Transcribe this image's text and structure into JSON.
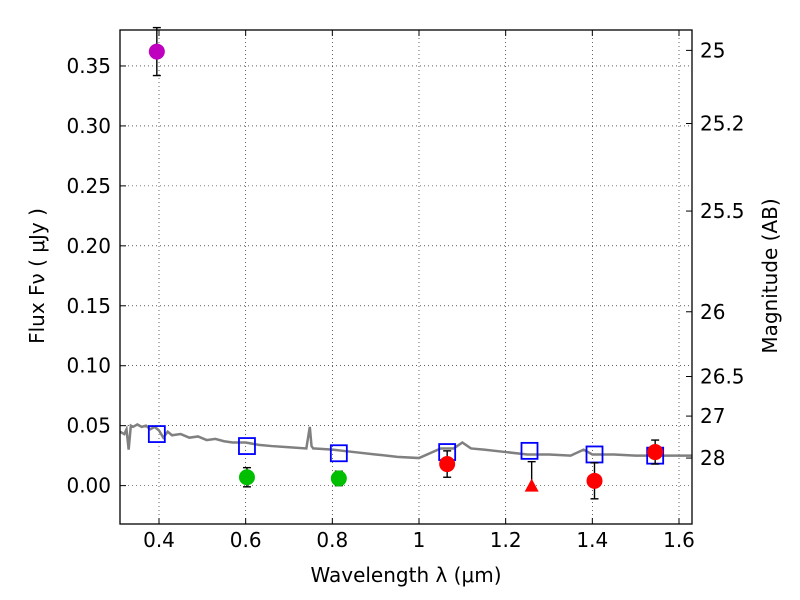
{
  "chart_data": {
    "type": "scatter",
    "xlabel": "Wavelength  λ (μm)",
    "ylabel": "Flux  Fν  ( μJy )",
    "y2label": "Magnitude (AB)",
    "xlim": [
      0.31,
      1.63
    ],
    "ylim": [
      -0.032,
      0.38
    ],
    "grid": true,
    "x_ticks": [
      0.4,
      0.6,
      0.8,
      1.0,
      1.2,
      1.4,
      1.6
    ],
    "x_tick_labels": [
      "0.4",
      "0.6",
      "0.8",
      "1",
      "1.2",
      "1.4",
      "1.6"
    ],
    "y_ticks": [
      0.0,
      0.05,
      0.1,
      0.15,
      0.2,
      0.25,
      0.3,
      0.35
    ],
    "y_tick_labels": [
      "0.00",
      "0.05",
      "0.10",
      "0.15",
      "0.20",
      "0.25",
      "0.30",
      "0.35"
    ],
    "y2_ticks": [
      {
        "label": "25",
        "flux": 0.363
      },
      {
        "label": "25.2",
        "flux": 0.302
      },
      {
        "label": "25.5",
        "flux": 0.229
      },
      {
        "label": "26",
        "flux": 0.145
      },
      {
        "label": "26.5",
        "flux": 0.091
      },
      {
        "label": "27",
        "flux": 0.058
      },
      {
        "label": "28",
        "flux": 0.023
      }
    ],
    "series": [
      {
        "name": "purple detection",
        "color": "#bf00bf",
        "marker": "circle",
        "points": [
          {
            "x": 0.395,
            "y": 0.362,
            "err": 0.02
          }
        ]
      },
      {
        "name": "green detections",
        "color": "#00bf00",
        "marker": "circle",
        "points": [
          {
            "x": 0.603,
            "y": 0.007,
            "err": 0.008
          },
          {
            "x": 0.815,
            "y": 0.006,
            "err": 0.006
          }
        ]
      },
      {
        "name": "red detections",
        "color": "#ff0000",
        "marker": "circle",
        "points": [
          {
            "x": 1.065,
            "y": 0.018,
            "err": 0.011
          },
          {
            "x": 1.405,
            "y": 0.004,
            "err": 0.015
          },
          {
            "x": 1.545,
            "y": 0.028,
            "err": 0.01
          }
        ]
      },
      {
        "name": "red upper limit",
        "color": "#ff0000",
        "marker": "triangle",
        "points": [
          {
            "x": 1.26,
            "y": 0.0,
            "err_up": 0.02
          }
        ]
      },
      {
        "name": "model photometry",
        "color": "#0000ff",
        "marker": "open-square",
        "points": [
          {
            "x": 0.395,
            "y": 0.043
          },
          {
            "x": 0.603,
            "y": 0.033
          },
          {
            "x": 0.815,
            "y": 0.027
          },
          {
            "x": 1.065,
            "y": 0.028
          },
          {
            "x": 1.255,
            "y": 0.029
          },
          {
            "x": 1.405,
            "y": 0.026
          },
          {
            "x": 1.545,
            "y": 0.025
          }
        ]
      },
      {
        "name": "model SED",
        "color": "#808080",
        "marker": "line",
        "x": [
          0.31,
          0.32,
          0.325,
          0.33,
          0.335,
          0.34,
          0.345,
          0.35,
          0.36,
          0.37,
          0.38,
          0.39,
          0.4,
          0.41,
          0.42,
          0.43,
          0.45,
          0.47,
          0.49,
          0.51,
          0.53,
          0.55,
          0.57,
          0.6,
          0.63,
          0.66,
          0.7,
          0.74,
          0.748,
          0.752,
          0.756,
          0.76,
          0.8,
          0.85,
          0.9,
          0.95,
          1.0,
          1.05,
          1.08,
          1.1,
          1.12,
          1.15,
          1.2,
          1.25,
          1.3,
          1.35,
          1.38,
          1.4,
          1.45,
          1.5,
          1.55,
          1.6,
          1.63
        ],
        "y": [
          0.045,
          0.043,
          0.047,
          0.03,
          0.05,
          0.049,
          0.05,
          0.051,
          0.049,
          0.05,
          0.047,
          0.049,
          0.046,
          0.04,
          0.045,
          0.042,
          0.043,
          0.04,
          0.041,
          0.038,
          0.039,
          0.037,
          0.036,
          0.036,
          0.034,
          0.033,
          0.032,
          0.031,
          0.049,
          0.033,
          0.031,
          0.031,
          0.03,
          0.028,
          0.026,
          0.024,
          0.023,
          0.031,
          0.031,
          0.036,
          0.031,
          0.03,
          0.028,
          0.026,
          0.026,
          0.025,
          0.03,
          0.026,
          0.026,
          0.025,
          0.025,
          0.025,
          0.025
        ]
      }
    ]
  }
}
